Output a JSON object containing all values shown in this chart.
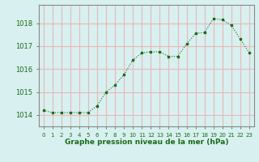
{
  "x": [
    0,
    1,
    2,
    3,
    4,
    5,
    6,
    7,
    8,
    9,
    10,
    11,
    12,
    13,
    14,
    15,
    16,
    17,
    18,
    19,
    20,
    21,
    22,
    23
  ],
  "y": [
    1014.2,
    1014.1,
    1014.1,
    1014.1,
    1014.1,
    1014.1,
    1014.4,
    1015.0,
    1015.3,
    1015.75,
    1016.4,
    1016.7,
    1016.75,
    1016.75,
    1016.55,
    1016.55,
    1017.1,
    1017.55,
    1017.6,
    1018.2,
    1018.15,
    1017.9,
    1017.3,
    1016.7
  ],
  "line_color": "#1a6b1a",
  "marker_color": "#1a6b1a",
  "bg_color": "#d8f0ef",
  "grid_color": "#e8b8b8",
  "xlabel": "Graphe pression niveau de la mer (hPa)",
  "xlabel_color": "#1a6b1a",
  "ylabel_left_ticks": [
    1014,
    1015,
    1016,
    1017,
    1018
  ],
  "ylim": [
    1013.5,
    1018.8
  ],
  "xlim": [
    -0.5,
    23.5
  ],
  "xtick_labels": [
    "0",
    "1",
    "2",
    "3",
    "4",
    "5",
    "6",
    "7",
    "8",
    "9",
    "10",
    "11",
    "12",
    "13",
    "14",
    "15",
    "16",
    "17",
    "18",
    "19",
    "20",
    "21",
    "22",
    "23"
  ],
  "tick_color": "#1a6b1a",
  "axis_color": "#888888",
  "tick_fontsize": 6,
  "xlabel_fontsize": 6.5
}
